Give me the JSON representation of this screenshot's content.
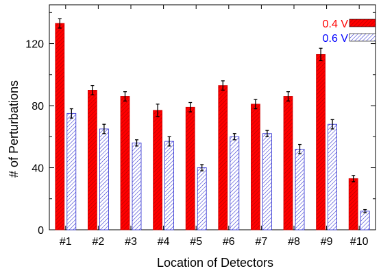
{
  "chart_data": {
    "type": "bar",
    "title": "",
    "xlabel": "Location of Detectors",
    "ylabel": "# of Perturbations",
    "categories": [
      "#1",
      "#2",
      "#3",
      "#4",
      "#5",
      "#6",
      "#7",
      "#8",
      "#9",
      "#10"
    ],
    "ylim": [
      0,
      145
    ],
    "yticks": [
      0,
      40,
      80,
      120
    ],
    "legend_position": "top-right",
    "series": [
      {
        "name": "0.4 V",
        "color": "#ff0000",
        "label_color": "#ff0000",
        "fill": "solid-hatched",
        "values": [
          133,
          90,
          86,
          77,
          79,
          93,
          81,
          86,
          113,
          33
        ],
        "errors": [
          3,
          3,
          3,
          4,
          3,
          3,
          3,
          3,
          4,
          2
        ]
      },
      {
        "name": "0.6 V",
        "color": "#3333cc",
        "label_color": "#0000ff",
        "fill": "hatched",
        "values": [
          75,
          65,
          56,
          57,
          40,
          60,
          62,
          52,
          68,
          12
        ],
        "errors": [
          3,
          3,
          2,
          3,
          2,
          2,
          2,
          3,
          3,
          1
        ]
      }
    ]
  }
}
